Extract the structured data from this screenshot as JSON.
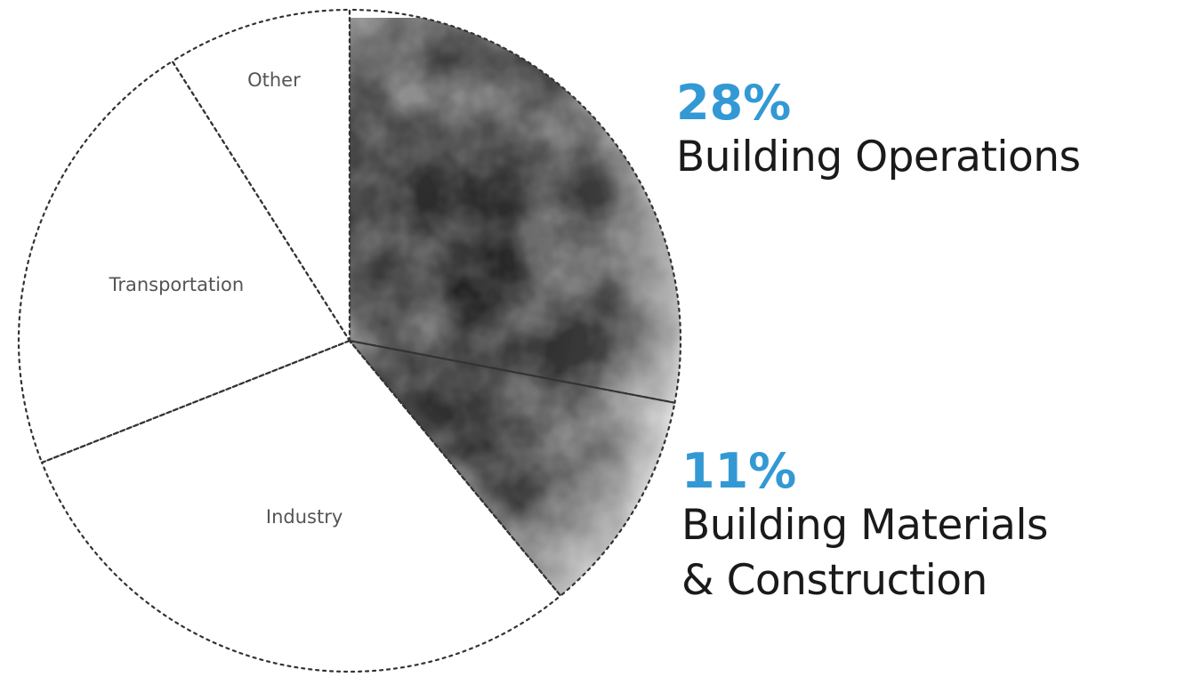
{
  "colors": {
    "accent": "#3399d4",
    "outline": "#333333",
    "smoke_dark": "#1c1c1c",
    "label_text": "#555555",
    "callout_text": "#1a1a1a"
  },
  "chart_data": {
    "type": "pie",
    "title": "",
    "slices": [
      {
        "label": "Building Operations",
        "value": 28,
        "display": "28%",
        "highlighted": true
      },
      {
        "label": "Building Materials\n& Construction",
        "value": 11,
        "display": "11%",
        "highlighted": true
      },
      {
        "label": "Industry",
        "value": 30,
        "display": "",
        "highlighted": false
      },
      {
        "label": "Transportation",
        "value": 22,
        "display": "",
        "highlighted": false
      },
      {
        "label": "Other",
        "value": 9,
        "display": "",
        "highlighted": false
      }
    ],
    "legend": "none",
    "outline_style": "dotted"
  },
  "callouts": {
    "operations": {
      "pct": "28%",
      "name": "Building Operations"
    },
    "materials": {
      "pct": "11%",
      "name_line1": "Building Materials",
      "name_line2": "& Construction"
    }
  }
}
